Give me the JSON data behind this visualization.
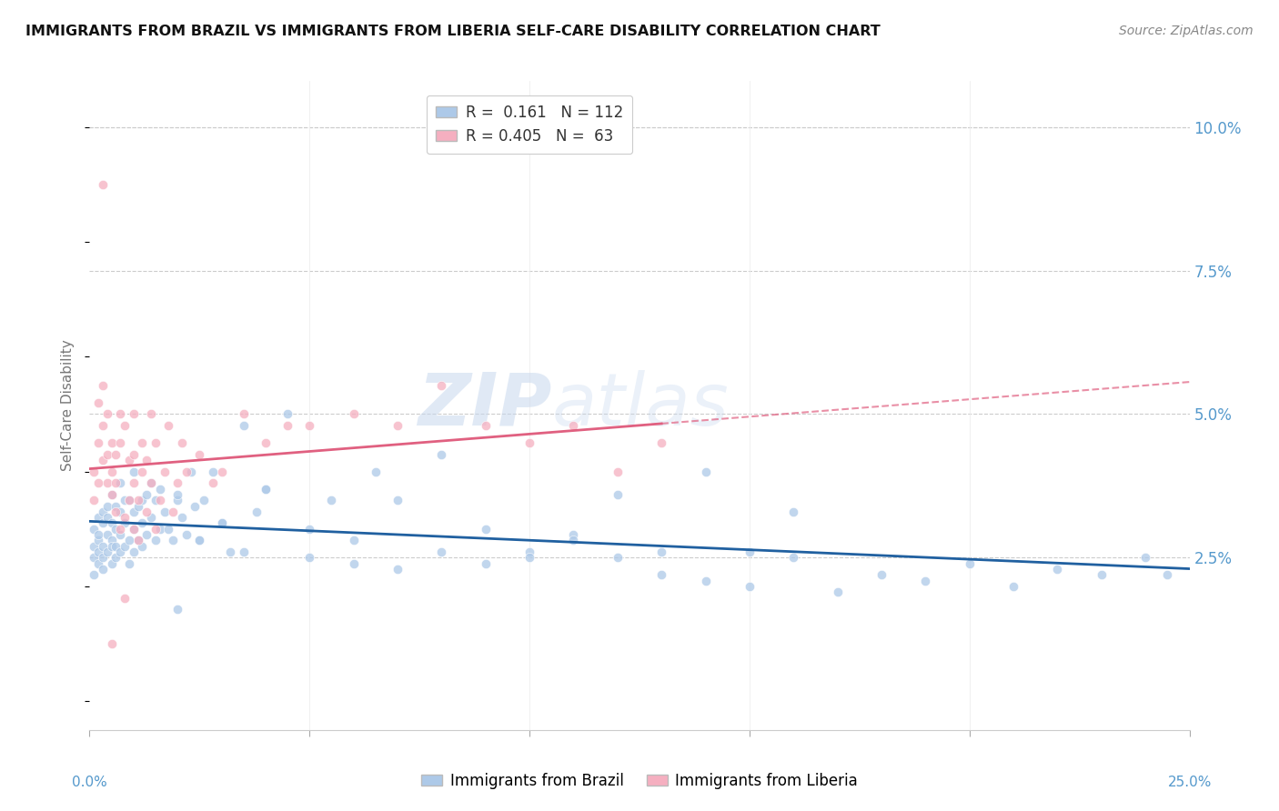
{
  "title": "IMMIGRANTS FROM BRAZIL VS IMMIGRANTS FROM LIBERIA SELF-CARE DISABILITY CORRELATION CHART",
  "source": "Source: ZipAtlas.com",
  "ylabel": "Self-Care Disability",
  "ytick_labels": [
    "2.5%",
    "5.0%",
    "7.5%",
    "10.0%"
  ],
  "ytick_values": [
    0.025,
    0.05,
    0.075,
    0.1
  ],
  "xlim": [
    0.0,
    0.25
  ],
  "ylim": [
    -0.005,
    0.108
  ],
  "brazil_color": "#adc9e8",
  "liberia_color": "#f5afc0",
  "brazil_R": 0.161,
  "brazil_N": 112,
  "liberia_R": 0.405,
  "liberia_N": 63,
  "brazil_line_color": "#2060a0",
  "liberia_line_color": "#e06080",
  "watermark_zip": "ZIP",
  "watermark_atlas": "atlas",
  "brazil_x": [
    0.001,
    0.001,
    0.001,
    0.001,
    0.002,
    0.002,
    0.002,
    0.002,
    0.002,
    0.003,
    0.003,
    0.003,
    0.003,
    0.003,
    0.004,
    0.004,
    0.004,
    0.004,
    0.005,
    0.005,
    0.005,
    0.005,
    0.005,
    0.006,
    0.006,
    0.006,
    0.006,
    0.007,
    0.007,
    0.007,
    0.007,
    0.008,
    0.008,
    0.008,
    0.009,
    0.009,
    0.009,
    0.01,
    0.01,
    0.01,
    0.01,
    0.011,
    0.011,
    0.012,
    0.012,
    0.012,
    0.013,
    0.013,
    0.014,
    0.014,
    0.015,
    0.015,
    0.016,
    0.016,
    0.017,
    0.018,
    0.019,
    0.02,
    0.02,
    0.021,
    0.022,
    0.023,
    0.024,
    0.025,
    0.026,
    0.028,
    0.03,
    0.032,
    0.035,
    0.038,
    0.04,
    0.045,
    0.05,
    0.055,
    0.06,
    0.065,
    0.07,
    0.08,
    0.09,
    0.1,
    0.11,
    0.12,
    0.13,
    0.14,
    0.15,
    0.16,
    0.17,
    0.18,
    0.19,
    0.2,
    0.21,
    0.22,
    0.23,
    0.24,
    0.245,
    0.02,
    0.025,
    0.03,
    0.035,
    0.04,
    0.05,
    0.06,
    0.07,
    0.08,
    0.09,
    0.1,
    0.11,
    0.12,
    0.13,
    0.14,
    0.15,
    0.16
  ],
  "brazil_y": [
    0.03,
    0.025,
    0.027,
    0.022,
    0.028,
    0.032,
    0.026,
    0.024,
    0.029,
    0.027,
    0.031,
    0.025,
    0.033,
    0.023,
    0.029,
    0.034,
    0.026,
    0.032,
    0.028,
    0.024,
    0.031,
    0.027,
    0.036,
    0.025,
    0.03,
    0.034,
    0.027,
    0.026,
    0.029,
    0.033,
    0.038,
    0.027,
    0.031,
    0.035,
    0.024,
    0.028,
    0.035,
    0.026,
    0.03,
    0.033,
    0.04,
    0.028,
    0.034,
    0.031,
    0.027,
    0.035,
    0.029,
    0.036,
    0.032,
    0.038,
    0.028,
    0.035,
    0.03,
    0.037,
    0.033,
    0.03,
    0.028,
    0.016,
    0.035,
    0.032,
    0.029,
    0.04,
    0.034,
    0.028,
    0.035,
    0.04,
    0.031,
    0.026,
    0.048,
    0.033,
    0.037,
    0.05,
    0.03,
    0.035,
    0.028,
    0.04,
    0.035,
    0.043,
    0.03,
    0.026,
    0.029,
    0.036,
    0.026,
    0.04,
    0.026,
    0.033,
    0.019,
    0.022,
    0.021,
    0.024,
    0.02,
    0.023,
    0.022,
    0.025,
    0.022,
    0.036,
    0.028,
    0.031,
    0.026,
    0.037,
    0.025,
    0.024,
    0.023,
    0.026,
    0.024,
    0.025,
    0.028,
    0.025,
    0.022,
    0.021,
    0.02,
    0.025
  ],
  "liberia_x": [
    0.001,
    0.001,
    0.002,
    0.002,
    0.002,
    0.003,
    0.003,
    0.003,
    0.004,
    0.004,
    0.004,
    0.005,
    0.005,
    0.005,
    0.006,
    0.006,
    0.006,
    0.007,
    0.007,
    0.007,
    0.008,
    0.008,
    0.009,
    0.009,
    0.01,
    0.01,
    0.01,
    0.011,
    0.011,
    0.012,
    0.012,
    0.013,
    0.013,
    0.014,
    0.014,
    0.015,
    0.015,
    0.016,
    0.017,
    0.018,
    0.019,
    0.02,
    0.021,
    0.022,
    0.025,
    0.028,
    0.03,
    0.035,
    0.04,
    0.045,
    0.05,
    0.06,
    0.07,
    0.08,
    0.09,
    0.1,
    0.11,
    0.12,
    0.13,
    0.003,
    0.005,
    0.008,
    0.01
  ],
  "liberia_y": [
    0.035,
    0.04,
    0.052,
    0.045,
    0.038,
    0.048,
    0.042,
    0.055,
    0.05,
    0.038,
    0.043,
    0.036,
    0.04,
    0.045,
    0.033,
    0.038,
    0.043,
    0.03,
    0.045,
    0.05,
    0.032,
    0.048,
    0.035,
    0.042,
    0.03,
    0.038,
    0.043,
    0.028,
    0.035,
    0.04,
    0.045,
    0.033,
    0.042,
    0.038,
    0.05,
    0.03,
    0.045,
    0.035,
    0.04,
    0.048,
    0.033,
    0.038,
    0.045,
    0.04,
    0.043,
    0.038,
    0.04,
    0.05,
    0.045,
    0.048,
    0.048,
    0.05,
    0.048,
    0.055,
    0.048,
    0.045,
    0.048,
    0.04,
    0.045,
    0.09,
    0.01,
    0.018,
    0.05
  ]
}
